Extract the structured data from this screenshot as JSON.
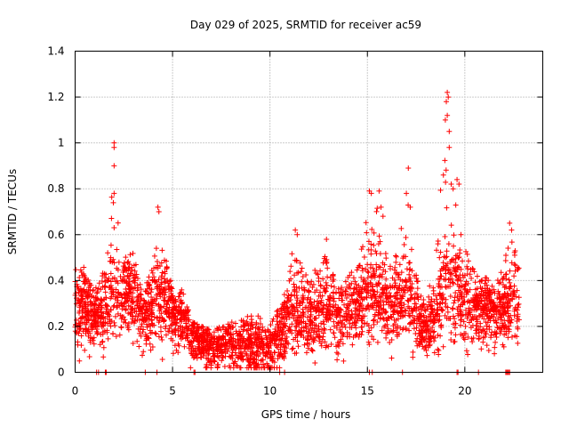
{
  "chart_data": {
    "type": "scatter",
    "title": "Day 029 of 2025, SRMTID for receiver ac59",
    "xlabel": "GPS time / hours",
    "ylabel": "SRMTID / TECUs",
    "xlim": [
      0,
      24
    ],
    "ylim": [
      0,
      1.4
    ],
    "xticks": [
      0,
      5,
      10,
      15,
      20
    ],
    "yticks": [
      0,
      0.2,
      0.4,
      0.6,
      0.8,
      1,
      1.2,
      1.4
    ],
    "ytick_labels": [
      "0",
      "0.2",
      "0.4",
      "0.6",
      "0.8",
      "1",
      "1.2",
      "1.4"
    ],
    "grid": true,
    "marker": "plus",
    "color": "#ff0000",
    "envelope": [
      {
        "t": 0.0,
        "base": 0.28,
        "spread": 0.1,
        "peak": 0.52
      },
      {
        "t": 0.5,
        "base": 0.26,
        "spread": 0.1,
        "peak": 0.45
      },
      {
        "t": 1.0,
        "base": 0.24,
        "spread": 0.08,
        "peak": 0.38
      },
      {
        "t": 1.5,
        "base": 0.28,
        "spread": 0.1,
        "peak": 0.48
      },
      {
        "t": 2.0,
        "base": 0.34,
        "spread": 0.12,
        "peak": 1.0
      },
      {
        "t": 2.5,
        "base": 0.32,
        "spread": 0.1,
        "peak": 0.5
      },
      {
        "t": 3.0,
        "base": 0.34,
        "spread": 0.12,
        "peak": 0.58
      },
      {
        "t": 3.5,
        "base": 0.22,
        "spread": 0.08,
        "peak": 0.3
      },
      {
        "t": 4.0,
        "base": 0.28,
        "spread": 0.1,
        "peak": 0.55
      },
      {
        "t": 4.3,
        "base": 0.34,
        "spread": 0.14,
        "peak": 0.72
      },
      {
        "t": 5.0,
        "base": 0.24,
        "spread": 0.08,
        "peak": 0.35
      },
      {
        "t": 5.5,
        "base": 0.22,
        "spread": 0.08,
        "peak": 0.36
      },
      {
        "t": 6.0,
        "base": 0.14,
        "spread": 0.06,
        "peak": 0.22
      },
      {
        "t": 7.0,
        "base": 0.1,
        "spread": 0.06,
        "peak": 0.18
      },
      {
        "t": 8.0,
        "base": 0.12,
        "spread": 0.07,
        "peak": 0.22
      },
      {
        "t": 9.0,
        "base": 0.11,
        "spread": 0.07,
        "peak": 0.28
      },
      {
        "t": 10.0,
        "base": 0.1,
        "spread": 0.07,
        "peak": 0.2
      },
      {
        "t": 10.8,
        "base": 0.2,
        "spread": 0.09,
        "peak": 0.35
      },
      {
        "t": 11.2,
        "base": 0.26,
        "spread": 0.1,
        "peak": 0.62
      },
      {
        "t": 12.0,
        "base": 0.22,
        "spread": 0.09,
        "peak": 0.45
      },
      {
        "t": 12.8,
        "base": 0.26,
        "spread": 0.1,
        "peak": 0.58
      },
      {
        "t": 13.5,
        "base": 0.22,
        "spread": 0.09,
        "peak": 0.4
      },
      {
        "t": 14.5,
        "base": 0.26,
        "spread": 0.1,
        "peak": 0.5
      },
      {
        "t": 15.0,
        "base": 0.36,
        "spread": 0.12,
        "peak": 0.8
      },
      {
        "t": 15.5,
        "base": 0.36,
        "spread": 0.12,
        "peak": 0.8
      },
      {
        "t": 16.0,
        "base": 0.28,
        "spread": 0.1,
        "peak": 0.6
      },
      {
        "t": 16.5,
        "base": 0.26,
        "spread": 0.1,
        "peak": 0.55
      },
      {
        "t": 17.0,
        "base": 0.36,
        "spread": 0.12,
        "peak": 0.9
      },
      {
        "t": 17.5,
        "base": 0.24,
        "spread": 0.09,
        "peak": 0.5
      },
      {
        "t": 18.0,
        "base": 0.18,
        "spread": 0.07,
        "peak": 0.3
      },
      {
        "t": 18.5,
        "base": 0.22,
        "spread": 0.09,
        "peak": 0.6
      },
      {
        "t": 19.0,
        "base": 0.36,
        "spread": 0.14,
        "peak": 1.22
      },
      {
        "t": 19.5,
        "base": 0.34,
        "spread": 0.12,
        "peak": 0.82
      },
      {
        "t": 20.0,
        "base": 0.28,
        "spread": 0.1,
        "peak": 0.6
      },
      {
        "t": 20.5,
        "base": 0.28,
        "spread": 0.1,
        "peak": 0.5
      },
      {
        "t": 21.0,
        "base": 0.26,
        "spread": 0.09,
        "peak": 0.45
      },
      {
        "t": 21.5,
        "base": 0.26,
        "spread": 0.09,
        "peak": 0.4
      },
      {
        "t": 22.0,
        "base": 0.28,
        "spread": 0.1,
        "peak": 0.5
      },
      {
        "t": 22.3,
        "base": 0.3,
        "spread": 0.1,
        "peak": 0.65
      },
      {
        "t": 22.8,
        "base": 0.28,
        "spread": 0.1,
        "peak": 0.52
      }
    ],
    "points_per_hour": 150,
    "spikes": [
      {
        "x": 2.0,
        "y": 1.0
      },
      {
        "x": 2.0,
        "y": 0.98
      },
      {
        "x": 2.0,
        "y": 0.9
      },
      {
        "x": 2.0,
        "y": 0.78
      },
      {
        "x": 2.0,
        "y": 0.63
      },
      {
        "x": 4.25,
        "y": 0.72
      },
      {
        "x": 4.3,
        "y": 0.7
      },
      {
        "x": 11.3,
        "y": 0.62
      },
      {
        "x": 11.4,
        "y": 0.6
      },
      {
        "x": 12.9,
        "y": 0.58
      },
      {
        "x": 15.1,
        "y": 0.79
      },
      {
        "x": 15.2,
        "y": 0.78
      },
      {
        "x": 15.6,
        "y": 0.79
      },
      {
        "x": 15.7,
        "y": 0.72
      },
      {
        "x": 15.8,
        "y": 0.68
      },
      {
        "x": 17.1,
        "y": 0.89
      },
      {
        "x": 17.0,
        "y": 0.78
      },
      {
        "x": 17.2,
        "y": 0.72
      },
      {
        "x": 18.9,
        "y": 0.86
      },
      {
        "x": 19.0,
        "y": 1.1
      },
      {
        "x": 19.05,
        "y": 1.18
      },
      {
        "x": 19.1,
        "y": 1.22
      },
      {
        "x": 19.15,
        "y": 1.2
      },
      {
        "x": 19.1,
        "y": 1.12
      },
      {
        "x": 19.2,
        "y": 1.05
      },
      {
        "x": 19.2,
        "y": 0.98
      },
      {
        "x": 19.3,
        "y": 0.82
      },
      {
        "x": 19.4,
        "y": 0.8
      },
      {
        "x": 19.6,
        "y": 0.84
      },
      {
        "x": 19.7,
        "y": 0.82
      },
      {
        "x": 19.8,
        "y": 0.6
      },
      {
        "x": 22.3,
        "y": 0.65
      },
      {
        "x": 22.4,
        "y": 0.62
      }
    ],
    "zero_points": [
      1.1,
      1.2,
      1.55,
      1.6,
      3.6,
      4.2,
      6.1,
      6.15,
      10.5,
      10.75,
      15.1,
      15.25,
      16.8,
      19.6,
      19.65,
      20.7,
      22.1,
      22.15,
      22.2,
      22.25,
      22.3
    ]
  }
}
